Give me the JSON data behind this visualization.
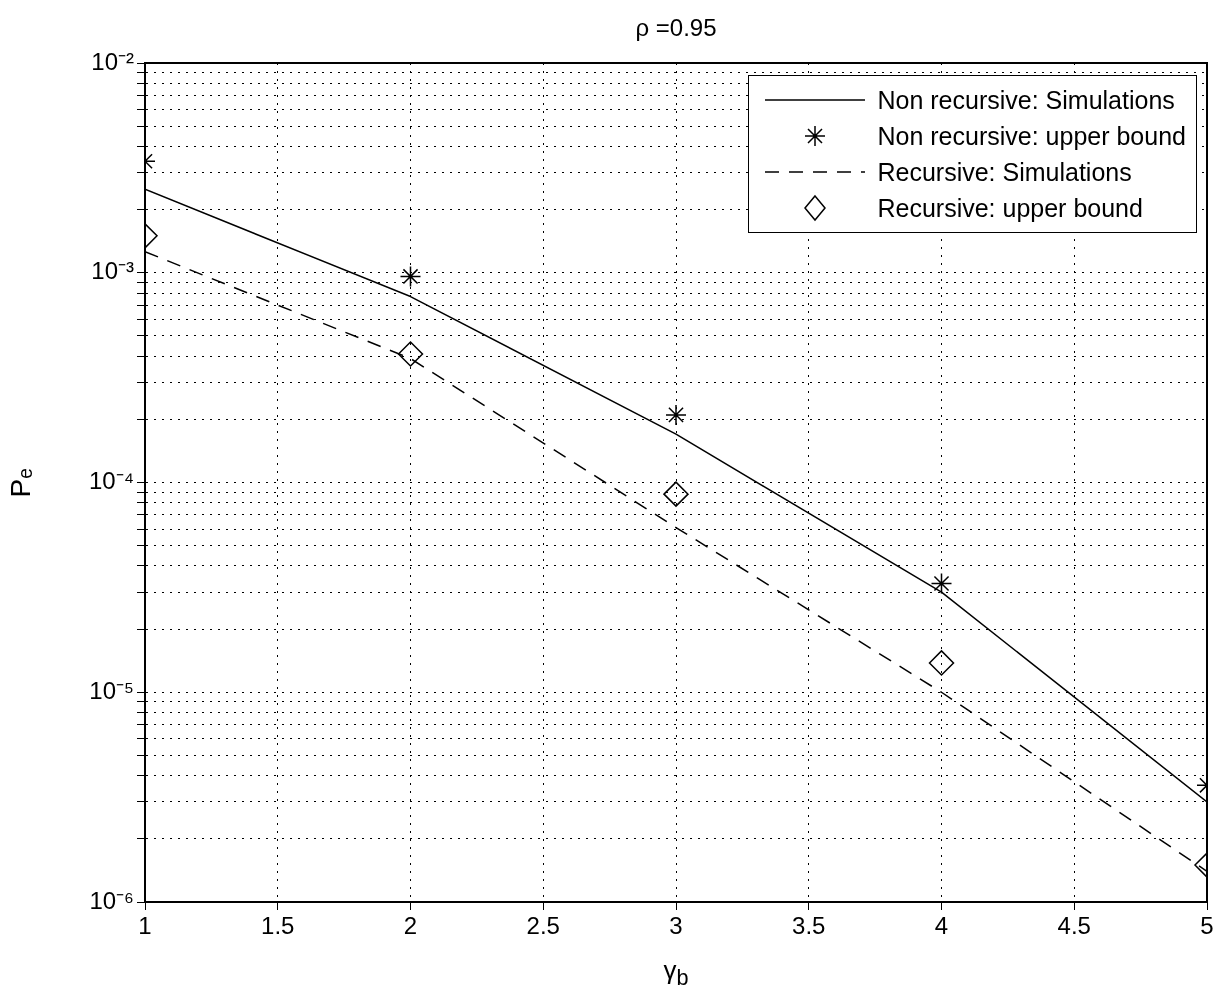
{
  "chart_data": {
    "type": "line",
    "title": "ρ =0.95",
    "xlabel": "γ$_{b}$",
    "ylabel": "Pₑ",
    "xlim": [
      1,
      5
    ],
    "xticks": [
      1,
      1.5,
      2,
      2.5,
      3,
      3.5,
      4,
      4.5,
      5
    ],
    "log": "y",
    "ylim": [
      1e-06,
      0.01
    ],
    "yticks": [
      {
        "value": 1e-06,
        "label": "10⁻⁶"
      },
      {
        "value": 2e-06,
        "label": null
      },
      {
        "value": 3e-06,
        "label": null
      },
      {
        "value": 4e-06,
        "label": null
      },
      {
        "value": 5e-06,
        "label": null
      },
      {
        "value": 6e-06,
        "label": null
      },
      {
        "value": 7e-06,
        "label": null
      },
      {
        "value": 8e-06,
        "label": null
      },
      {
        "value": 9e-06,
        "label": null
      },
      {
        "value": 1e-05,
        "label": "10⁻⁵"
      },
      {
        "value": 2e-05,
        "label": null
      },
      {
        "value": 3e-05,
        "label": null
      },
      {
        "value": 4e-05,
        "label": null
      },
      {
        "value": 5e-05,
        "label": null
      },
      {
        "value": 6e-05,
        "label": null
      },
      {
        "value": 7e-05,
        "label": null
      },
      {
        "value": 8e-05,
        "label": null
      },
      {
        "value": 9e-05,
        "label": null
      },
      {
        "value": 0.0001,
        "label": "10⁻⁴"
      },
      {
        "value": 0.0002,
        "label": null
      },
      {
        "value": 0.0003,
        "label": null
      },
      {
        "value": 0.0004,
        "label": null
      },
      {
        "value": 0.0005,
        "label": null
      },
      {
        "value": 0.0006,
        "label": null
      },
      {
        "value": 0.0007,
        "label": null
      },
      {
        "value": 0.0008,
        "label": null
      },
      {
        "value": 0.0009,
        "label": null
      },
      {
        "value": 0.001,
        "label": "10⁻³"
      },
      {
        "value": 0.002,
        "label": null
      },
      {
        "value": 0.003,
        "label": null
      },
      {
        "value": 0.004,
        "label": null
      },
      {
        "value": 0.005,
        "label": null
      },
      {
        "value": 0.006,
        "label": null
      },
      {
        "value": 0.007,
        "label": null
      },
      {
        "value": 0.008,
        "label": null
      },
      {
        "value": 0.009,
        "label": null
      },
      {
        "value": 0.01,
        "label": "10⁻²"
      }
    ],
    "grid": true,
    "legend": "top right",
    "series": [
      {
        "name": "Non recursive: Simulations",
        "type": "line",
        "color": "#000000",
        "marker": "none",
        "line_style": "solid",
        "x": [
          1,
          2,
          3,
          4,
          5
        ],
        "values": [
          0.0025,
          0.00077,
          0.00017,
          3e-05,
          3e-06
        ]
      },
      {
        "name": "Non recursive: upper bound",
        "type": "scatter",
        "color": "#000000",
        "marker": "cross",
        "x": [
          1,
          2,
          3,
          4,
          5
        ],
        "values": [
          0.0034,
          0.00096,
          0.00021,
          3.3e-05,
          3.6e-06
        ]
      },
      {
        "name": "Recursive: Simulations",
        "type": "line",
        "color": "#000000",
        "marker": "none",
        "line_style": "dashed",
        "x": [
          1,
          2,
          3,
          4,
          5
        ],
        "values": [
          0.00126,
          0.00039,
          6.1e-05,
          1e-05,
          1.4e-06
        ]
      },
      {
        "name": "Recursive: upper bound",
        "type": "scatter",
        "color": "#000000",
        "marker": "diamond",
        "x": [
          1,
          2,
          3,
          4,
          5
        ],
        "values": [
          0.0015,
          0.00041,
          8.8e-05,
          1.38e-05,
          1.5e-06
        ]
      }
    ]
  }
}
